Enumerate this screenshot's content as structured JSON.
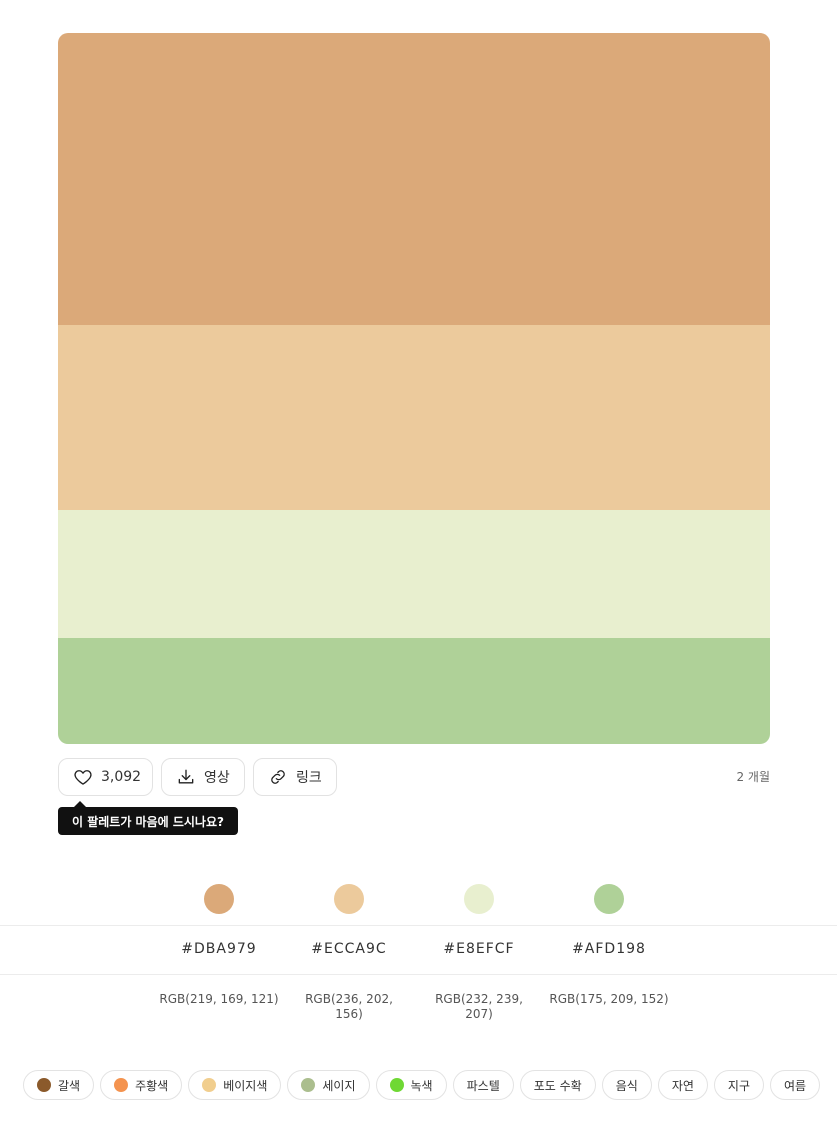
{
  "palette": {
    "swatches": [
      {
        "hex": "#DBA979",
        "rgb": "RGB(219, 169, 121)"
      },
      {
        "hex": "#ECCA9C",
        "rgb": "RGB(236, 202, 156)"
      },
      {
        "hex": "#E8EFCF",
        "rgb": "RGB(232, 239, 207)"
      },
      {
        "hex": "#AFD198",
        "rgb": "RGB(175, 209, 152)"
      }
    ]
  },
  "actions": {
    "like_count": "3,092",
    "video_label": "영상",
    "link_label": "링크",
    "age": "2 개월",
    "tooltip": "이 팔레트가 마음에 드시나요?"
  },
  "colors": {
    "c1": {
      "hex": "#DBA979",
      "rgb_line1": "RGB(219, 169, 121)",
      "rgb_line2": ""
    },
    "c2": {
      "hex": "#ECCA9C",
      "rgb_line1": "RGB(236, 202,",
      "rgb_line2": "156)"
    },
    "c3": {
      "hex": "#E8EFCF",
      "rgb_line1": "RGB(232, 239,",
      "rgb_line2": "207)"
    },
    "c4": {
      "hex": "#AFD198",
      "rgb_line1": "RGB(175, 209, 152)",
      "rgb_line2": ""
    }
  },
  "tags": [
    {
      "label": "갈색",
      "color": "#8B5A2B"
    },
    {
      "label": "주황색",
      "color": "#F4934F"
    },
    {
      "label": "베이지색",
      "color": "#F1CE8E"
    },
    {
      "label": "세이지",
      "color": "#ABBE8E"
    },
    {
      "label": "녹색",
      "color": "#6FD834"
    },
    {
      "label": "파스텔",
      "color": ""
    },
    {
      "label": "포도 수확",
      "color": ""
    },
    {
      "label": "음식",
      "color": ""
    },
    {
      "label": "자연",
      "color": ""
    },
    {
      "label": "지구",
      "color": ""
    },
    {
      "label": "여름",
      "color": ""
    }
  ]
}
